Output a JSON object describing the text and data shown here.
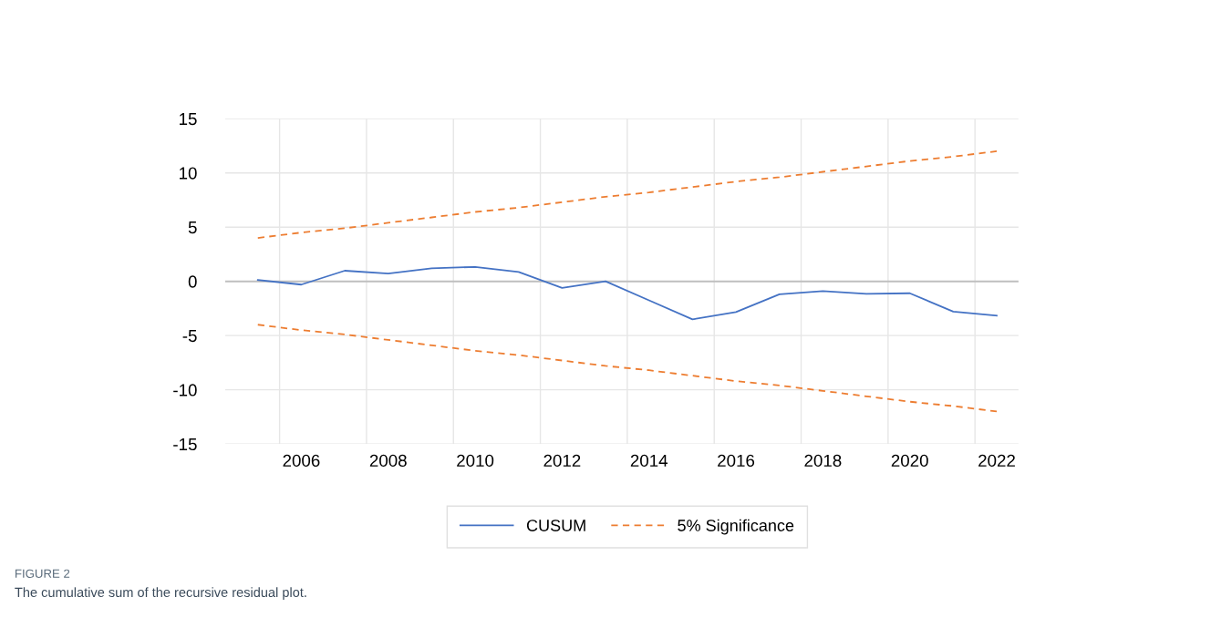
{
  "chart_data": {
    "type": "line",
    "categories": [
      null,
      "2006",
      null,
      "2008",
      null,
      "2010",
      null,
      "2012",
      null,
      "2014",
      null,
      "2016",
      null,
      "2018",
      null,
      "2020",
      null,
      "2022"
    ],
    "series": [
      {
        "name": "CUSUM",
        "color": "#4472c4",
        "line_style": "solid",
        "values": [
          0.12,
          -0.3,
          0.98,
          0.72,
          1.2,
          1.33,
          0.86,
          -0.6,
          0.0,
          -1.75,
          -3.5,
          -2.84,
          -1.19,
          -0.9,
          -1.16,
          -1.1,
          -2.79,
          -3.16
        ]
      },
      {
        "name": "5% Significance",
        "color": "#ed7d31",
        "line_style": "dashed",
        "values": [
          4.0,
          4.5,
          4.9,
          5.4,
          5.9,
          6.4,
          6.8,
          7.3,
          7.8,
          8.2,
          8.7,
          9.2,
          9.6,
          10.1,
          10.6,
          11.1,
          11.5,
          12.0
        ]
      },
      {
        "color": "#ed7d31",
        "line_style": "dashed",
        "values": [
          -4.0,
          -4.5,
          -4.9,
          -5.4,
          -5.9,
          -6.4,
          -6.8,
          -7.3,
          -7.8,
          -8.2,
          -8.7,
          -9.2,
          -9.6,
          -10.1,
          -10.6,
          -11.1,
          -11.5,
          -12.0
        ]
      }
    ],
    "ylim": [
      -15,
      15
    ],
    "yticks": [
      -15,
      -10,
      -5,
      0,
      5,
      10,
      15
    ],
    "ref_lines": [
      {
        "axis": "y",
        "value": 0,
        "color": "#bfbfbf"
      }
    ],
    "grid": true,
    "legend": "bottom",
    "marker": "none",
    "annotations": [
      "FIGURE 2",
      "The cumulative sum of the recursive residual plot."
    ]
  }
}
